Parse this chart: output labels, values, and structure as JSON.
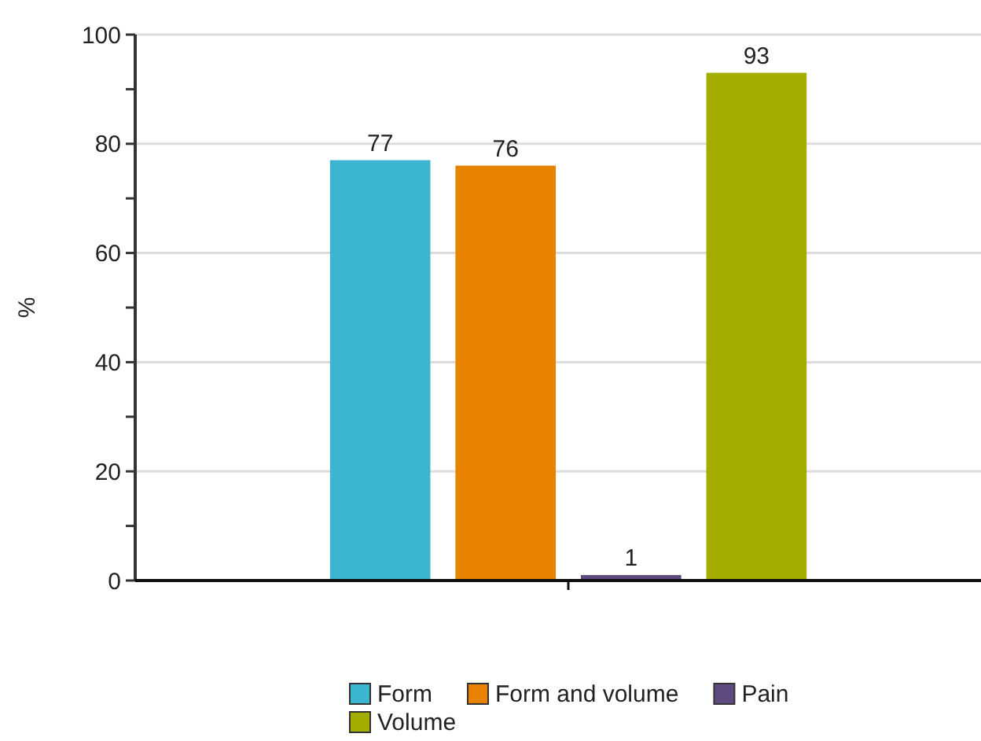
{
  "chart_data": {
    "type": "bar",
    "ylabel": "%",
    "categories": [
      null
    ],
    "series": [
      {
        "name": "Form",
        "color": "#3cb5cf",
        "values": [
          77
        ]
      },
      {
        "name": "Form and volume",
        "color": "#e88300",
        "values": [
          76
        ]
      },
      {
        "name": "Pain",
        "color": "#5e4a7e",
        "values": [
          1
        ]
      },
      {
        "name": "Volume",
        "color": "#a3ad00",
        "values": [
          93
        ]
      }
    ],
    "ylim": [
      0,
      100
    ],
    "yticks": [
      0,
      {
        "value": 10,
        "label": null
      },
      20,
      {
        "value": 30,
        "label": null
      },
      40,
      {
        "value": 50,
        "label": null
      },
      60,
      {
        "value": 70,
        "label": null
      },
      80,
      {
        "value": 90,
        "label": null
      },
      100
    ],
    "grid": "y",
    "legend": "bottom",
    "data_labels": true
  }
}
